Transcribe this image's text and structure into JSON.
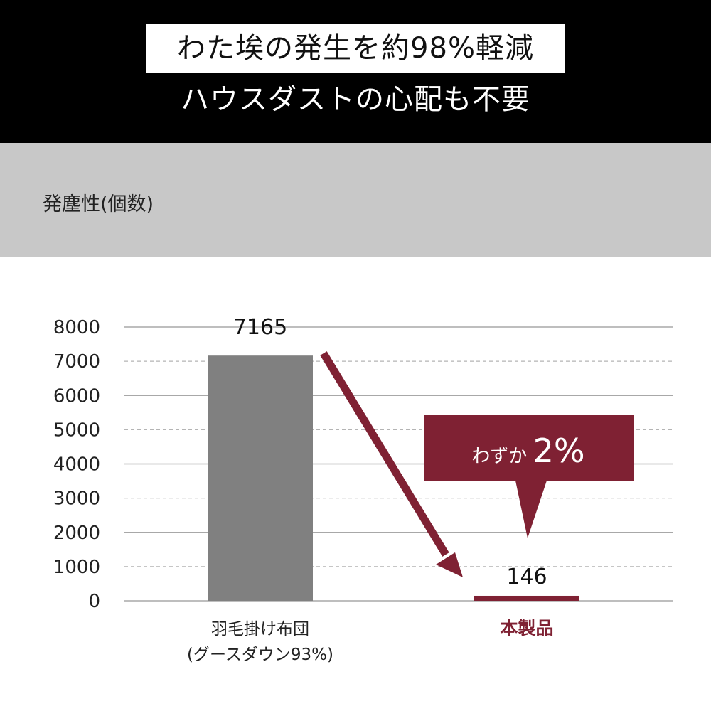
{
  "headline": "わた埃の発生を約98%軽減",
  "subheadline": "ハウスダストの心配も不要",
  "metric_label": "発塵性(個数)",
  "callout": {
    "prefix": "わずか",
    "value": "2%"
  },
  "colors": {
    "header_bg": "#000000",
    "band_bg": "#c8c8c8",
    "bar_comparison": "#808080",
    "bar_product": "#7f2133",
    "accent": "#7f2133"
  },
  "chart_data": {
    "type": "bar",
    "categories": [
      "羽毛掛け布団\n(グースダウン93%)",
      "本製品"
    ],
    "values": [
      7165,
      146
    ],
    "data_labels": [
      "7165",
      "146"
    ],
    "title": "",
    "xlabel": "",
    "ylabel": "発塵性(個数)",
    "ylim": [
      0,
      8000
    ],
    "yticks": [
      0,
      1000,
      2000,
      3000,
      4000,
      5000,
      6000,
      7000,
      8000
    ],
    "grid": true,
    "legend": "none"
  }
}
